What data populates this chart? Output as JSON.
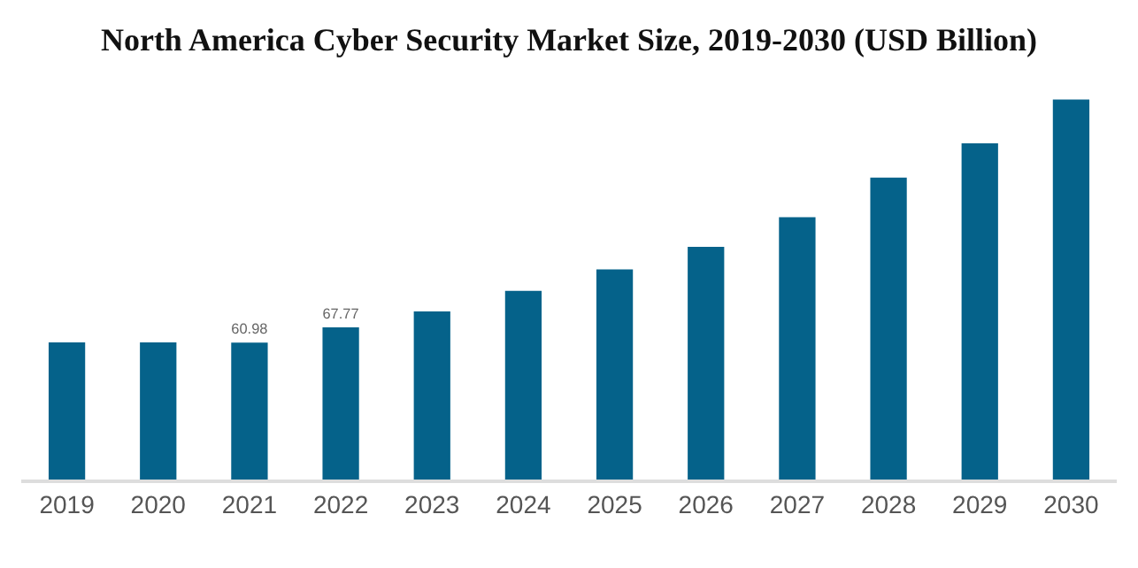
{
  "chart_data": {
    "type": "bar",
    "title": "North America Cyber Security Market Size, 2019-2030 (USD Billion)",
    "categories": [
      "2019",
      "2020",
      "2021",
      "2022",
      "2023",
      "2024",
      "2025",
      "2026",
      "2027",
      "2028",
      "2029",
      "2030"
    ],
    "values": [
      61.0,
      61.0,
      60.98,
      67.77,
      74.8,
      84.0,
      93.5,
      103.6,
      116.8,
      134.4,
      149.6,
      169.1
    ],
    "value_labels": [
      null,
      null,
      "60.98",
      "67.77",
      null,
      null,
      null,
      null,
      null,
      null,
      null,
      null
    ],
    "color": "#05628a"
  }
}
